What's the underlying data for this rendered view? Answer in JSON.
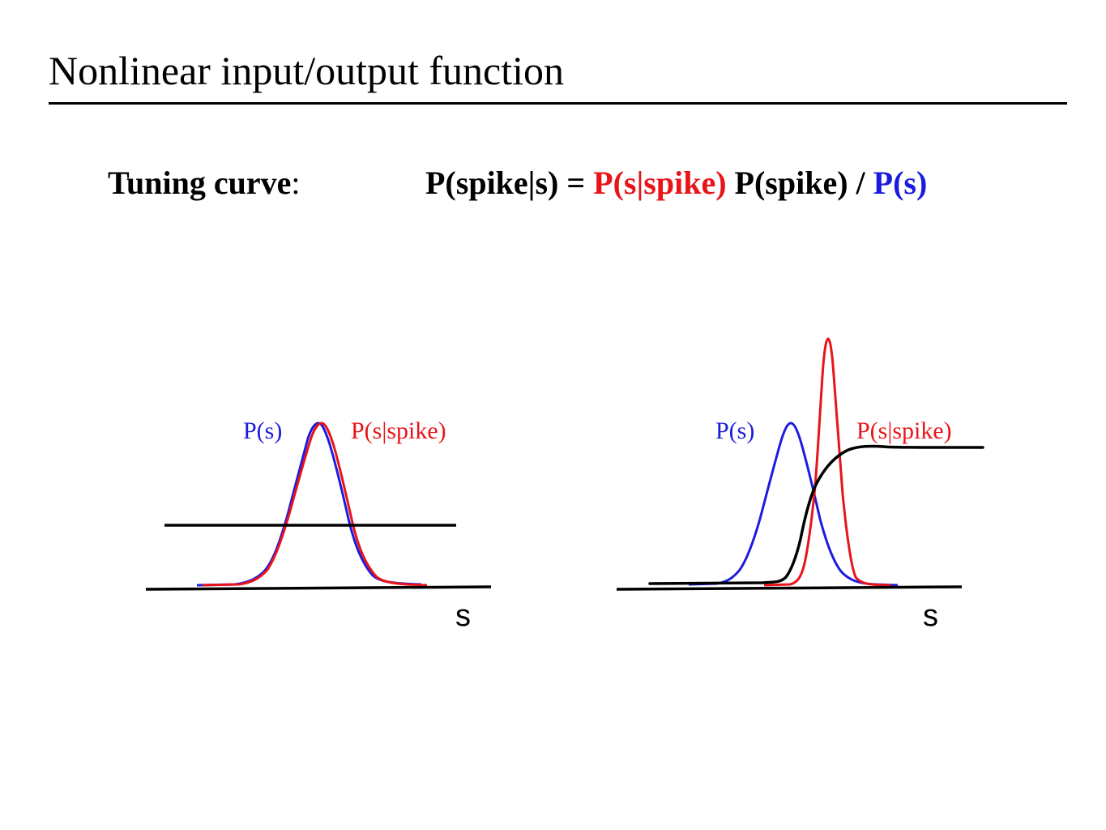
{
  "slide": {
    "title": "Nonlinear input/output function"
  },
  "formula": {
    "label": "Tuning curve",
    "label_colon": ":",
    "lhs": "P(spike|s) = ",
    "likelihood": "P(s|spike)",
    "prior_spike": " P(spike) / ",
    "stimulus_prior": "P(s)",
    "colors": {
      "likelihood": "#e8141a",
      "stimulus_prior": "#1b1be0",
      "tuning_curve": "#000000"
    }
  },
  "panels": [
    {
      "id": "left",
      "prior_label": "P(s)",
      "conditional_label": "P(s|spike)",
      "axis_label": "s",
      "tuning_curve_shape": "flat"
    },
    {
      "id": "right",
      "prior_label": "P(s)",
      "conditional_label": "P(s|spike)",
      "axis_label": "s",
      "tuning_curve_shape": "sigmoid"
    }
  ]
}
